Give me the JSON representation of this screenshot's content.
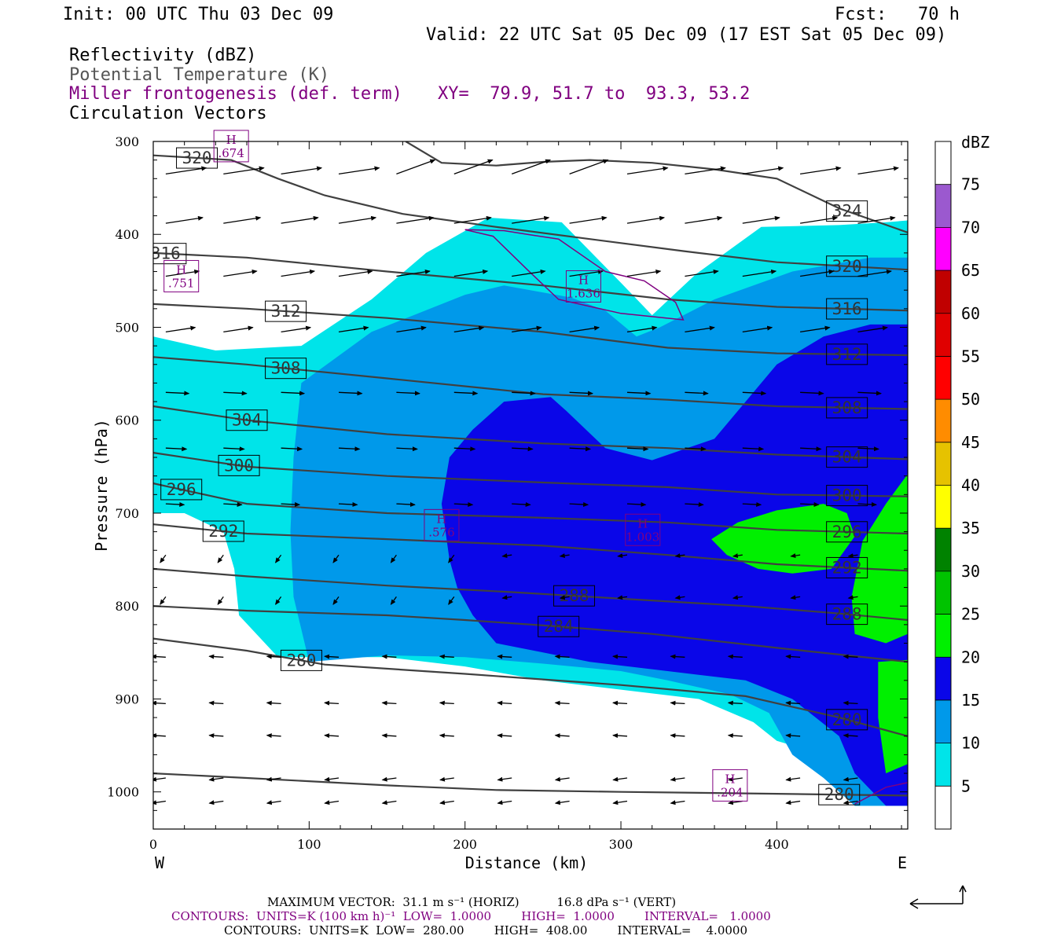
{
  "header": {
    "init": "Init: 00 UTC Thu 03 Dec 09",
    "fcst": "Fcst:   70 h",
    "valid": "Valid: 22 UTC Sat 05 Dec 09 (17 EST Sat 05 Dec 09)",
    "field1": "Reflectivity (dBZ)",
    "field2": "Potential Temperature (K)",
    "field3": "Miller frontogenesis (def. term)",
    "xy": "XY=  79.9, 51.7 to  93.3, 53.2",
    "field4": "Circulation Vectors"
  },
  "footer": {
    "maxvec": "MAXIMUM VECTOR:  31.1 m s⁻¹ (HORIZ)          16.8 dPa s⁻¹ (VERT)",
    "contours1": "CONTOURS:  UNITS=K (100 km h)⁻¹  LOW=  1.0000        HIGH=  1.0000        INTERVAL=   1.0000",
    "contours2": "CONTOURS:  UNITS=K  LOW=  280.00        HIGH=  408.00        INTERVAL=    4.0000"
  },
  "colors": {
    "dbz5": "#00e4e9",
    "dbz10": "#0099ea",
    "dbz15": "#0a06e8",
    "dbz20": "#00f000",
    "dbz25": "#00c300",
    "dbz30": "#008200",
    "dbz35": "#ffff00",
    "dbz40": "#e6c200",
    "dbz45": "#ff8c00",
    "dbz50": "#ff0000",
    "dbz55": "#e00000",
    "dbz60": "#c00000",
    "dbz65": "#ff00ff",
    "dbz70": "#9b59cf",
    "theta_line": "#404040",
    "frontogenesis": "#800080"
  },
  "chart_data": {
    "type": "cross-section",
    "xlabel": "Distance (km)",
    "ylabel": "Pressure (hPa)",
    "xlim": [
      0,
      484
    ],
    "ylim": [
      1040,
      300
    ],
    "x_ticks": [
      "0",
      "100",
      "200",
      "300",
      "400"
    ],
    "y_ticks": [
      "300",
      "400",
      "500",
      "600",
      "700",
      "800",
      "900",
      "1000"
    ],
    "x_ends": {
      "west": "W",
      "east": "E"
    },
    "colorbar": {
      "title": "dBZ",
      "levels": [
        "5",
        "10",
        "15",
        "20",
        "25",
        "30",
        "35",
        "40",
        "45",
        "50",
        "55",
        "60",
        "65",
        "70",
        "75"
      ]
    },
    "reflectivity_regions": [
      {
        "level": 5,
        "points": [
          [
            0,
            510
          ],
          [
            40,
            525
          ],
          [
            95,
            520
          ],
          [
            140,
            470
          ],
          [
            175,
            420
          ],
          [
            215,
            382
          ],
          [
            262,
            387
          ],
          [
            300,
            452
          ],
          [
            320,
            487
          ],
          [
            348,
            443
          ],
          [
            390,
            392
          ],
          [
            440,
            390
          ],
          [
            470,
            387
          ],
          [
            484,
            385
          ],
          [
            484,
            1015
          ],
          [
            450,
            1015
          ],
          [
            430,
            960
          ],
          [
            400,
            945
          ],
          [
            385,
            925
          ],
          [
            350,
            900
          ],
          [
            300,
            890
          ],
          [
            250,
            880
          ],
          [
            200,
            865
          ],
          [
            150,
            855
          ],
          [
            80,
            855
          ],
          [
            55,
            810
          ],
          [
            52,
            760
          ],
          [
            45,
            720
          ],
          [
            20,
            700
          ],
          [
            0,
            700
          ]
        ]
      },
      {
        "level": 10,
        "points": [
          [
            100,
            860
          ],
          [
            90,
            790
          ],
          [
            88,
            720
          ],
          [
            90,
            640
          ],
          [
            95,
            560
          ],
          [
            140,
            505
          ],
          [
            200,
            465
          ],
          [
            225,
            455
          ],
          [
            268,
            468
          ],
          [
            290,
            482
          ],
          [
            310,
            510
          ],
          [
            325,
            500
          ],
          [
            360,
            470
          ],
          [
            410,
            440
          ],
          [
            460,
            425
          ],
          [
            484,
            425
          ],
          [
            484,
            1015
          ],
          [
            450,
            1015
          ],
          [
            430,
            985
          ],
          [
            410,
            960
          ],
          [
            395,
            915
          ],
          [
            370,
            895
          ],
          [
            330,
            880
          ],
          [
            300,
            870
          ],
          [
            250,
            862
          ],
          [
            200,
            855
          ],
          [
            150,
            853
          ]
        ]
      },
      {
        "level": 15,
        "points": [
          [
            185,
            690
          ],
          [
            190,
            640
          ],
          [
            205,
            610
          ],
          [
            225,
            580
          ],
          [
            255,
            575
          ],
          [
            265,
            590
          ],
          [
            290,
            630
          ],
          [
            320,
            643
          ],
          [
            360,
            620
          ],
          [
            400,
            540
          ],
          [
            430,
            510
          ],
          [
            460,
            497
          ],
          [
            484,
            497
          ],
          [
            484,
            1015
          ],
          [
            470,
            1015
          ],
          [
            450,
            980
          ],
          [
            440,
            940
          ],
          [
            410,
            900
          ],
          [
            380,
            880
          ],
          [
            330,
            870
          ],
          [
            280,
            860
          ],
          [
            250,
            850
          ],
          [
            220,
            840
          ],
          [
            205,
            810
          ],
          [
            195,
            780
          ],
          [
            190,
            750
          ]
        ]
      },
      {
        "level": 20,
        "points": [
          [
            358,
            728
          ],
          [
            375,
            710
          ],
          [
            400,
            697
          ],
          [
            430,
            690
          ],
          [
            445,
            700
          ],
          [
            450,
            725
          ],
          [
            435,
            760
          ],
          [
            410,
            765
          ],
          [
            388,
            760
          ],
          [
            368,
            745
          ]
        ]
      },
      {
        "level": 20,
        "points": [
          [
            484,
            658
          ],
          [
            470,
            690
          ],
          [
            455,
            730
          ],
          [
            448,
            790
          ],
          [
            450,
            830
          ],
          [
            470,
            840
          ],
          [
            484,
            830
          ]
        ]
      },
      {
        "level": 20,
        "points": [
          [
            484,
            858
          ],
          [
            465,
            860
          ],
          [
            465,
            920
          ],
          [
            470,
            980
          ],
          [
            484,
            970
          ]
        ]
      }
    ],
    "theta_contours": [
      {
        "label": "280",
        "points": [
          [
            0,
            980
          ],
          [
            60,
            985
          ],
          [
            150,
            993
          ],
          [
            220,
            998
          ],
          [
            300,
            1000
          ],
          [
            400,
            1002
          ],
          [
            484,
            1004
          ]
        ]
      },
      {
        "label": "280",
        "points": [
          [
            0,
            835
          ],
          [
            60,
            848
          ],
          [
            110,
            863
          ],
          [
            200,
            873
          ],
          [
            300,
            885
          ],
          [
            380,
            897
          ],
          [
            440,
            920
          ],
          [
            484,
            940
          ]
        ]
      },
      {
        "label": "284",
        "points": [
          [
            0,
            800
          ],
          [
            60,
            805
          ],
          [
            150,
            810
          ],
          [
            200,
            815
          ],
          [
            260,
            822
          ],
          [
            320,
            830
          ],
          [
            400,
            845
          ],
          [
            484,
            860
          ]
        ]
      },
      {
        "label": "288",
        "points": [
          [
            0,
            760
          ],
          [
            60,
            768
          ],
          [
            150,
            778
          ],
          [
            230,
            785
          ],
          [
            300,
            792
          ],
          [
            380,
            800
          ],
          [
            440,
            808
          ],
          [
            484,
            815
          ]
        ]
      },
      {
        "label": "292",
        "points": [
          [
            0,
            712
          ],
          [
            60,
            722
          ],
          [
            150,
            728
          ],
          [
            250,
            735
          ],
          [
            330,
            745
          ],
          [
            400,
            755
          ],
          [
            484,
            762
          ]
        ]
      },
      {
        "label": "296",
        "points": [
          [
            0,
            668
          ],
          [
            60,
            690
          ],
          [
            150,
            700
          ],
          [
            250,
            705
          ],
          [
            330,
            710
          ],
          [
            400,
            718
          ],
          [
            484,
            722
          ]
        ]
      },
      {
        "label": "300",
        "points": [
          [
            0,
            635
          ],
          [
            60,
            650
          ],
          [
            150,
            660
          ],
          [
            250,
            667
          ],
          [
            330,
            672
          ],
          [
            400,
            680
          ],
          [
            484,
            682
          ]
        ]
      },
      {
        "label": "304",
        "points": [
          [
            0,
            585
          ],
          [
            60,
            600
          ],
          [
            150,
            615
          ],
          [
            250,
            625
          ],
          [
            330,
            630
          ],
          [
            400,
            637
          ],
          [
            484,
            642
          ]
        ]
      },
      {
        "label": "308",
        "points": [
          [
            0,
            532
          ],
          [
            60,
            540
          ],
          [
            150,
            555
          ],
          [
            250,
            572
          ],
          [
            330,
            578
          ],
          [
            400,
            585
          ],
          [
            484,
            588
          ]
        ]
      },
      {
        "label": "312",
        "points": [
          [
            0,
            475
          ],
          [
            60,
            480
          ],
          [
            150,
            490
          ],
          [
            250,
            505
          ],
          [
            330,
            522
          ],
          [
            400,
            528
          ],
          [
            484,
            530
          ]
        ]
      },
      {
        "label": "316",
        "points": [
          [
            0,
            420
          ],
          [
            60,
            425
          ],
          [
            150,
            440
          ],
          [
            250,
            455
          ],
          [
            330,
            470
          ],
          [
            400,
            478
          ],
          [
            484,
            482
          ]
        ]
      },
      {
        "label": "320",
        "points": [
          [
            0,
            315
          ],
          [
            50,
            320
          ],
          [
            80,
            340
          ],
          [
            110,
            358
          ],
          [
            160,
            378
          ],
          [
            220,
            392
          ],
          [
            280,
            405
          ],
          [
            340,
            418
          ],
          [
            400,
            430
          ],
          [
            484,
            438
          ]
        ]
      },
      {
        "label": "324",
        "points": [
          [
            162,
            300
          ],
          [
            185,
            323
          ],
          [
            220,
            326
          ],
          [
            250,
            322
          ],
          [
            280,
            320
          ],
          [
            320,
            323
          ],
          [
            360,
            330
          ],
          [
            400,
            340
          ],
          [
            440,
            372
          ],
          [
            484,
            398
          ]
        ]
      }
    ],
    "frontogenesis_contours": [
      {
        "points": [
          [
            200,
            395
          ],
          [
            218,
            402
          ],
          [
            240,
            438
          ],
          [
            260,
            470
          ],
          [
            300,
            485
          ],
          [
            340,
            492
          ],
          [
            335,
            473
          ],
          [
            315,
            450
          ],
          [
            290,
            440
          ],
          [
            260,
            405
          ],
          [
            240,
            400
          ],
          [
            225,
            396
          ]
        ]
      },
      {
        "points": [
          [
            450,
            1013
          ],
          [
            470,
            995
          ],
          [
            484,
            990
          ]
        ]
      }
    ],
    "maxima": [
      {
        "label": "H",
        "value": ".674",
        "x": 50,
        "y": 305
      },
      {
        "label": "H",
        "value": ".751",
        "x": 18,
        "y": 445
      },
      {
        "label": "H",
        "value": "1.636",
        "x": 276,
        "y": 456
      },
      {
        "label": "H",
        "value": ".576",
        "x": 185,
        "y": 713
      },
      {
        "label": "H",
        "value": "1.003",
        "x": 314,
        "y": 718
      },
      {
        "label": "H",
        "value": ".204",
        "x": 370,
        "y": 993
      }
    ],
    "vector_reference": {
      "horiz": "31.1 m s-1",
      "vert": "16.8 dPa s-1"
    }
  }
}
